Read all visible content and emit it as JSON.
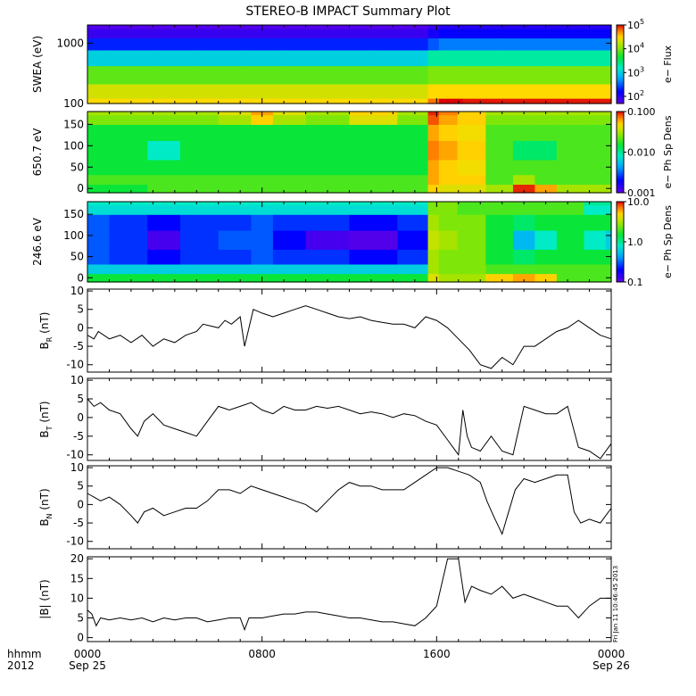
{
  "title": "STEREO-B IMPACT Summary Plot",
  "time_axis": {
    "unit_label": "hhmm",
    "year_label": "2012",
    "ticks": [
      {
        "hour": 0,
        "label": "0000",
        "date": "Sep 25"
      },
      {
        "hour": 8,
        "label": "0800",
        "date": ""
      },
      {
        "hour": 16,
        "label": "1600",
        "date": ""
      },
      {
        "hour": 24,
        "label": "0000",
        "date": "Sep 26"
      }
    ]
  },
  "timestamp": "Fri Jan 11 10:46:45 2013",
  "colors": {
    "frame": "#000000",
    "line": "#000000",
    "background": "#ffffff"
  },
  "chart_data": [
    {
      "type": "heatmap",
      "ylabel": "SWEA (eV)",
      "y_scale": "log",
      "ylim": [
        100,
        2000
      ],
      "y_ticks": [
        {
          "v": 100,
          "label": "100"
        },
        {
          "v": 1000,
          "label": "1000"
        }
      ],
      "colorbar": {
        "label": "e− Flux",
        "scale": "log",
        "range": [
          50,
          100000
        ],
        "ticks": [
          {
            "v": 100,
            "base": "10",
            "exp": "2"
          },
          {
            "v": 1000,
            "base": "10",
            "exp": "3"
          },
          {
            "v": 10000,
            "base": "10",
            "exp": "4"
          },
          {
            "v": 100000,
            "base": "10",
            "exp": "5"
          }
        ]
      },
      "x_hours": [
        0,
        2,
        4,
        6,
        8,
        10,
        12,
        14,
        15.4,
        15.8,
        16.4,
        18,
        20,
        22,
        24
      ],
      "y_levels": [
        100,
        150,
        300,
        600,
        1000,
        1500,
        2000
      ],
      "values": [
        [
          30000.0,
          30000.0,
          30000.0,
          30000.0,
          30000.0,
          30000.0,
          30000.0,
          30000.0,
          30000.0,
          60000.0,
          100000.0,
          90000.0,
          90000.0,
          90000.0,
          90000.0
        ],
        [
          20000.0,
          20000.0,
          20000.0,
          20000.0,
          20000.0,
          20000.0,
          20000.0,
          20000.0,
          20000.0,
          30000.0,
          30000.0,
          30000.0,
          30000.0,
          30000.0,
          30000.0
        ],
        [
          8000.0,
          8000.0,
          8000.0,
          8000.0,
          8000.0,
          8000.0,
          8000.0,
          8000.0,
          8000.0,
          10000.0,
          10000.0,
          10000.0,
          10000.0,
          10000.0,
          10000.0
        ],
        [
          1000.0,
          1000.0,
          1000.0,
          1000.0,
          1000.0,
          1000.0,
          1000.0,
          1000.0,
          1000.0,
          2000.0,
          2000.0,
          2000.0,
          2000.0,
          2000.0,
          2000.0
        ],
        [
          200,
          200,
          200,
          200,
          200,
          200,
          200,
          200,
          200,
          300,
          400,
          400,
          400,
          400,
          400
        ],
        [
          80,
          80,
          80,
          80,
          80,
          80,
          80,
          80,
          80,
          120,
          150,
          150,
          150,
          150,
          150
        ],
        [
          60,
          60,
          60,
          60,
          60,
          60,
          60,
          60,
          60,
          80,
          100,
          100,
          100,
          100,
          100
        ]
      ]
    },
    {
      "type": "heatmap",
      "ylabel": "650.7 eV",
      "y_scale": "linear",
      "ylim": [
        -10,
        180
      ],
      "y_ticks": [
        {
          "v": 0,
          "label": "0"
        },
        {
          "v": 50,
          "label": "50"
        },
        {
          "v": 100,
          "label": "100"
        },
        {
          "v": 150,
          "label": "150"
        }
      ],
      "colorbar": {
        "label": "e− Ph Sp Dens",
        "scale": "log",
        "range": [
          0.001,
          0.1
        ],
        "ticks": [
          {
            "v": 0.001,
            "label": "0.001"
          },
          {
            "v": 0.01,
            "label": "0.010"
          },
          {
            "v": 0.1,
            "label": "0.100"
          }
        ]
      },
      "x_hours": [
        0,
        2,
        3.5,
        5,
        7,
        8,
        9,
        11,
        13,
        15.4,
        15.8,
        16.4,
        17.5,
        19,
        20,
        21,
        22,
        24
      ],
      "y_levels": [
        0,
        20,
        45,
        90,
        135,
        165,
        180
      ],
      "values": [
        [
          0.015,
          0.015,
          0.02,
          0.02,
          0.02,
          0.02,
          0.02,
          0.02,
          0.02,
          0.02,
          0.05,
          0.04,
          0.04,
          0.03,
          0.09,
          0.06,
          0.03,
          0.03
        ],
        [
          0.02,
          0.02,
          0.02,
          0.02,
          0.02,
          0.02,
          0.02,
          0.02,
          0.02,
          0.02,
          0.06,
          0.05,
          0.05,
          0.02,
          0.03,
          0.02,
          0.02,
          0.02
        ],
        [
          0.015,
          0.015,
          0.015,
          0.015,
          0.015,
          0.015,
          0.015,
          0.015,
          0.015,
          0.015,
          0.06,
          0.05,
          0.045,
          0.02,
          0.02,
          0.02,
          0.02,
          0.02
        ],
        [
          0.015,
          0.015,
          0.008,
          0.015,
          0.015,
          0.015,
          0.015,
          0.015,
          0.015,
          0.015,
          0.07,
          0.06,
          0.05,
          0.02,
          0.012,
          0.012,
          0.02,
          0.02
        ],
        [
          0.015,
          0.015,
          0.015,
          0.015,
          0.015,
          0.015,
          0.015,
          0.015,
          0.015,
          0.015,
          0.06,
          0.05,
          0.045,
          0.02,
          0.02,
          0.02,
          0.02,
          0.02
        ],
        [
          0.025,
          0.025,
          0.025,
          0.025,
          0.03,
          0.05,
          0.03,
          0.025,
          0.04,
          0.025,
          0.08,
          0.06,
          0.05,
          0.025,
          0.025,
          0.025,
          0.025,
          0.025
        ],
        [
          0.03,
          0.03,
          0.03,
          0.03,
          0.04,
          0.06,
          0.04,
          0.03,
          0.05,
          0.03,
          0.09,
          0.07,
          0.05,
          0.03,
          0.03,
          0.03,
          0.03,
          0.03
        ]
      ]
    },
    {
      "type": "heatmap",
      "ylabel": "246.6 eV",
      "y_scale": "linear",
      "ylim": [
        -10,
        180
      ],
      "y_ticks": [
        {
          "v": 0,
          "label": "0"
        },
        {
          "v": 50,
          "label": "50"
        },
        {
          "v": 100,
          "label": "100"
        },
        {
          "v": 150,
          "label": "150"
        }
      ],
      "colorbar": {
        "label": "e− Ph Sp Dens",
        "scale": "log",
        "range": [
          0.1,
          10
        ],
        "ticks": [
          {
            "v": 0.1,
            "label": "0.1"
          },
          {
            "v": 1,
            "label": "1.0"
          },
          {
            "v": 10,
            "label": "10.0"
          }
        ]
      },
      "x_hours": [
        0,
        2,
        3.5,
        5,
        7,
        8,
        9,
        11,
        13,
        15.4,
        15.8,
        16.4,
        17.5,
        19,
        20,
        21,
        22,
        23.5,
        24
      ],
      "y_levels": [
        0,
        20,
        45,
        90,
        135,
        165,
        180
      ],
      "values": [
        [
          1.5,
          1.5,
          1.5,
          1.5,
          1.5,
          1.5,
          1.5,
          1.5,
          1.5,
          1.5,
          4,
          3,
          3,
          5,
          6,
          5,
          2,
          2,
          2
        ],
        [
          0.6,
          0.6,
          0.6,
          0.6,
          0.6,
          0.6,
          0.6,
          0.6,
          0.6,
          0.6,
          3,
          2.5,
          2.5,
          2,
          2,
          2,
          2,
          2,
          2
        ],
        [
          0.3,
          0.25,
          0.2,
          0.25,
          0.25,
          0.3,
          0.25,
          0.25,
          0.2,
          0.25,
          3,
          2.5,
          2.5,
          1.5,
          1.2,
          1.5,
          1.5,
          1.5,
          1.5
        ],
        [
          0.3,
          0.25,
          0.12,
          0.25,
          0.3,
          0.3,
          0.2,
          0.12,
          0.11,
          0.2,
          3.5,
          3,
          2.5,
          1.5,
          0.5,
          0.8,
          1.5,
          0.8,
          0.6
        ],
        [
          0.3,
          0.25,
          0.2,
          0.25,
          0.25,
          0.3,
          0.25,
          0.25,
          0.2,
          0.25,
          3,
          2.5,
          2.5,
          1.5,
          1.2,
          1.5,
          1.5,
          1.5,
          1.5
        ],
        [
          0.7,
          0.7,
          0.7,
          0.7,
          0.7,
          0.7,
          0.7,
          0.7,
          0.7,
          0.7,
          2.5,
          2.5,
          2,
          2,
          2,
          2,
          2,
          0.8,
          0.8
        ],
        [
          0.8,
          0.8,
          0.8,
          0.8,
          0.8,
          0.8,
          0.8,
          0.8,
          0.8,
          0.8,
          2.5,
          2.5,
          2,
          2,
          2,
          2,
          2,
          1,
          1
        ]
      ]
    },
    {
      "type": "line",
      "ylabel": {
        "main": "B",
        "sub": "R",
        "unit": "(nT)"
      },
      "ylim": [
        -12,
        10.5
      ],
      "y_ticks": [
        -10,
        -5,
        0,
        5,
        10
      ],
      "x_hours": [
        0,
        0.3,
        0.5,
        1,
        1.5,
        2,
        2.5,
        3,
        3.5,
        4,
        4.5,
        5,
        5.3,
        6,
        6.3,
        6.6,
        7,
        7.2,
        7.4,
        7.6,
        8,
        8.5,
        9,
        9.5,
        10,
        10.5,
        11,
        11.5,
        12,
        12.5,
        13,
        13.5,
        14,
        14.5,
        15,
        15.5,
        16,
        16.5,
        17,
        17.5,
        18,
        18.5,
        19,
        19.5,
        20,
        20.5,
        21,
        21.5,
        22,
        22.5,
        23,
        23.5,
        24
      ],
      "values": [
        -2,
        -3,
        -1,
        -3,
        -2,
        -4,
        -2,
        -5,
        -3,
        -4,
        -2,
        -1,
        1,
        0,
        2,
        1,
        3,
        -5,
        0,
        5,
        4,
        3,
        4,
        5,
        6,
        5,
        4,
        3,
        2.5,
        3,
        2,
        1.5,
        1,
        1,
        0,
        3,
        2,
        0,
        -3,
        -6,
        -10,
        -11,
        -8,
        -10,
        -5,
        -5,
        -3,
        -1,
        0,
        2,
        0,
        -2,
        -3
      ]
    },
    {
      "type": "line",
      "ylabel": {
        "main": "B",
        "sub": "T",
        "unit": "(nT)"
      },
      "ylim": [
        -11.5,
        10.5
      ],
      "y_ticks": [
        -10,
        -5,
        0,
        5,
        10
      ],
      "x_hours": [
        0,
        0.3,
        0.6,
        1,
        1.5,
        2,
        2.3,
        2.6,
        3,
        3.5,
        4,
        4.5,
        5,
        5.5,
        6,
        6.5,
        7,
        7.5,
        8,
        8.5,
        9,
        9.5,
        10,
        10.5,
        11,
        11.5,
        12,
        12.5,
        13,
        13.5,
        14,
        14.5,
        15,
        15.5,
        16,
        16.5,
        17,
        17.2,
        17.4,
        17.6,
        18,
        18.5,
        19,
        19.5,
        20,
        20.5,
        21,
        21.5,
        22,
        22.5,
        23,
        23.5,
        24
      ],
      "values": [
        5,
        3,
        4,
        2,
        1,
        -3,
        -5,
        -1,
        1,
        -2,
        -3,
        -4,
        -5,
        -1,
        3,
        2,
        3,
        4,
        2,
        1,
        3,
        2,
        2,
        3,
        2.5,
        3,
        2,
        1,
        1.5,
        1,
        0,
        1,
        0.5,
        -1,
        -2,
        -6,
        -10,
        2,
        -5,
        -8,
        -9,
        -5,
        -9,
        -10,
        3,
        2,
        1,
        1,
        3,
        -8,
        -9,
        -11,
        -7
      ]
    },
    {
      "type": "line",
      "ylabel": {
        "main": "B",
        "sub": "N",
        "unit": "(nT)"
      },
      "ylim": [
        -12,
        10.5
      ],
      "y_ticks": [
        -10,
        -5,
        0,
        5,
        10
      ],
      "x_hours": [
        0,
        0.3,
        0.6,
        1,
        1.5,
        2,
        2.3,
        2.6,
        3,
        3.5,
        4,
        4.5,
        5,
        5.5,
        6,
        6.5,
        7,
        7.5,
        8,
        8.5,
        9,
        9.5,
        10,
        10.5,
        11,
        11.5,
        12,
        12.5,
        13,
        13.5,
        14,
        14.5,
        15,
        15.5,
        16,
        16.5,
        17,
        17.5,
        18,
        18.3,
        18.6,
        19,
        19.3,
        19.6,
        20,
        20.5,
        21,
        21.5,
        22,
        22.3,
        22.6,
        23,
        23.5,
        24
      ],
      "values": [
        3,
        2,
        1,
        2,
        0,
        -3,
        -5,
        -2,
        -1,
        -3,
        -2,
        -1,
        -1,
        1,
        4,
        4,
        3,
        5,
        4,
        3,
        2,
        1,
        0,
        -2,
        1,
        4,
        6,
        5,
        5,
        4,
        4,
        4,
        6,
        8,
        10,
        10,
        9,
        8,
        6,
        1,
        -3,
        -8,
        -2,
        4,
        7,
        6,
        7,
        8,
        8,
        -2,
        -5,
        -4,
        -5,
        -1
      ]
    },
    {
      "type": "line",
      "ylabel": {
        "main": "|B|",
        "sub": "",
        "unit": "(nT)"
      },
      "ylim": [
        -1,
        20.5
      ],
      "y_ticks": [
        0,
        5,
        10,
        15,
        20
      ],
      "x_hours": [
        0,
        0.2,
        0.4,
        0.6,
        1,
        1.5,
        2,
        2.5,
        3,
        3.5,
        4,
        4.5,
        5,
        5.5,
        6,
        6.5,
        7,
        7.2,
        7.4,
        7.6,
        8,
        8.5,
        9,
        9.5,
        10,
        10.5,
        11,
        11.5,
        12,
        12.5,
        13,
        13.5,
        14,
        14.5,
        15,
        15.5,
        16,
        16.5,
        17,
        17.3,
        17.6,
        18,
        18.5,
        19,
        19.5,
        20,
        20.5,
        21,
        21.5,
        22,
        22.5,
        23,
        23.5,
        24
      ],
      "values": [
        7,
        6,
        3,
        5,
        4.5,
        5,
        4.5,
        5,
        4,
        5,
        4.5,
        5,
        5,
        4,
        4.5,
        5,
        5,
        2,
        5,
        5,
        5,
        5.5,
        6,
        6,
        6.5,
        6.5,
        6,
        5.5,
        5,
        5,
        4.5,
        4,
        4,
        3.5,
        3,
        5,
        8,
        20,
        20,
        9,
        13,
        12,
        11,
        13,
        10,
        11,
        10,
        9,
        8,
        8,
        5,
        8,
        10,
        10
      ]
    }
  ]
}
